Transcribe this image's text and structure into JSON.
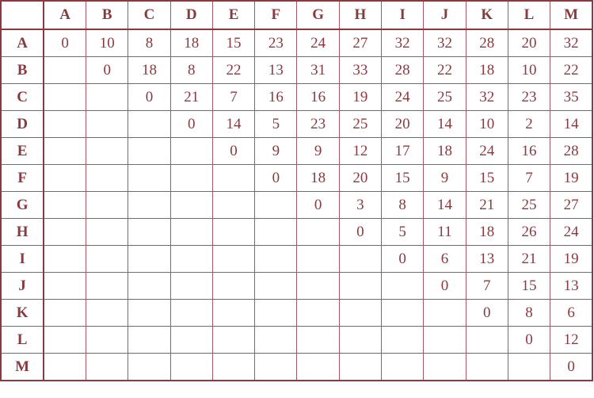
{
  "table": {
    "columns": [
      "A",
      "B",
      "C",
      "D",
      "E",
      "F",
      "G",
      "H",
      "I",
      "J",
      "K",
      "L",
      "M"
    ],
    "rows": [
      {
        "label": "A",
        "cells": [
          "0",
          "10",
          "8",
          "18",
          "15",
          "23",
          "24",
          "27",
          "32",
          "32",
          "28",
          "20",
          "32"
        ]
      },
      {
        "label": "B",
        "cells": [
          "",
          "0",
          "18",
          "8",
          "22",
          "13",
          "31",
          "33",
          "28",
          "22",
          "18",
          "10",
          "22"
        ]
      },
      {
        "label": "C",
        "cells": [
          "",
          "",
          "0",
          "21",
          "7",
          "16",
          "16",
          "19",
          "24",
          "25",
          "32",
          "23",
          "35"
        ]
      },
      {
        "label": "D",
        "cells": [
          "",
          "",
          "",
          "0",
          "14",
          "5",
          "23",
          "25",
          "20",
          "14",
          "10",
          "2",
          "14"
        ]
      },
      {
        "label": "E",
        "cells": [
          "",
          "",
          "",
          "",
          "0",
          "9",
          "9",
          "12",
          "17",
          "18",
          "24",
          "16",
          "28"
        ]
      },
      {
        "label": "F",
        "cells": [
          "",
          "",
          "",
          "",
          "",
          "0",
          "18",
          "20",
          "15",
          "9",
          "15",
          "7",
          "19"
        ]
      },
      {
        "label": "G",
        "cells": [
          "",
          "",
          "",
          "",
          "",
          "",
          "0",
          "3",
          "8",
          "14",
          "21",
          "25",
          "27"
        ]
      },
      {
        "label": "H",
        "cells": [
          "",
          "",
          "",
          "",
          "",
          "",
          "",
          "0",
          "5",
          "11",
          "18",
          "26",
          "24"
        ]
      },
      {
        "label": "I",
        "cells": [
          "",
          "",
          "",
          "",
          "",
          "",
          "",
          "",
          "0",
          "6",
          "13",
          "21",
          "19"
        ]
      },
      {
        "label": "J",
        "cells": [
          "",
          "",
          "",
          "",
          "",
          "",
          "",
          "",
          "",
          "0",
          "7",
          "15",
          "13"
        ]
      },
      {
        "label": "K",
        "cells": [
          "",
          "",
          "",
          "",
          "",
          "",
          "",
          "",
          "",
          "",
          "0",
          "8",
          "6"
        ]
      },
      {
        "label": "L",
        "cells": [
          "",
          "",
          "",
          "",
          "",
          "",
          "",
          "",
          "",
          "",
          "",
          "0",
          "12"
        ]
      },
      {
        "label": "M",
        "cells": [
          "",
          "",
          "",
          "",
          "",
          "",
          "",
          "",
          "",
          "",
          "",
          "",
          "0"
        ]
      }
    ]
  }
}
